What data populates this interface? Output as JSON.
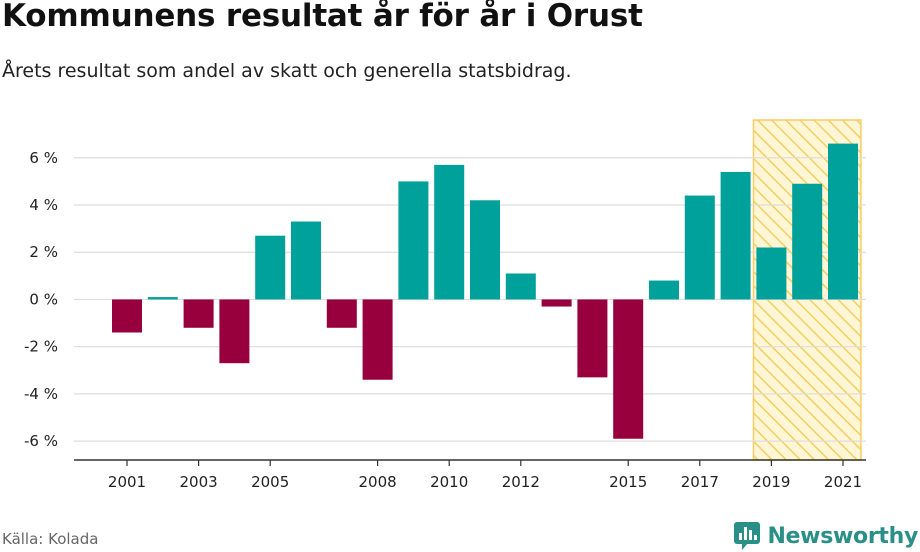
{
  "title": "Kommunens resultat år för år i Orust",
  "subtitle": "Årets resultat som andel av skatt och generella statsbidrag.",
  "source": "Källa: Kolada",
  "brand": "Newsworthy",
  "colors": {
    "positive": "#00a19a",
    "negative": "#97003c",
    "highlight_fill": "#fff6d5",
    "highlight_hatch": "#f5cd62",
    "grid": "#dddddd",
    "axis": "#333333"
  },
  "chart_data": {
    "type": "bar",
    "categories": [
      "2001",
      "2002",
      "2003",
      "2004",
      "2005",
      "2006",
      "2007",
      "2008",
      "2009",
      "2010",
      "2011",
      "2012",
      "2013",
      "2014",
      "2015",
      "2016",
      "2017",
      "2018",
      "2019",
      "2020",
      "2021"
    ],
    "values": [
      -1.4,
      0.1,
      -1.2,
      -2.7,
      2.7,
      3.3,
      -1.2,
      -3.4,
      5.0,
      5.7,
      4.2,
      1.1,
      -0.3,
      -3.3,
      -5.9,
      0.8,
      4.4,
      5.4,
      2.2,
      4.9,
      6.6
    ],
    "x_tick_labels": [
      "2001",
      "2003",
      "2005",
      "2008",
      "2010",
      "2012",
      "2015",
      "2017",
      "2019",
      "2021"
    ],
    "y_ticks": [
      -6,
      -4,
      -2,
      0,
      2,
      4,
      6
    ],
    "y_tick_labels": [
      "-6 %",
      "-4 %",
      "-2 %",
      "0 %",
      "2 %",
      "4 %",
      "6 %"
    ],
    "ylim": [
      -6.8,
      7.6
    ],
    "highlight_range": [
      "2019",
      "2021"
    ],
    "grid": true,
    "xlabel": "",
    "ylabel": ""
  }
}
